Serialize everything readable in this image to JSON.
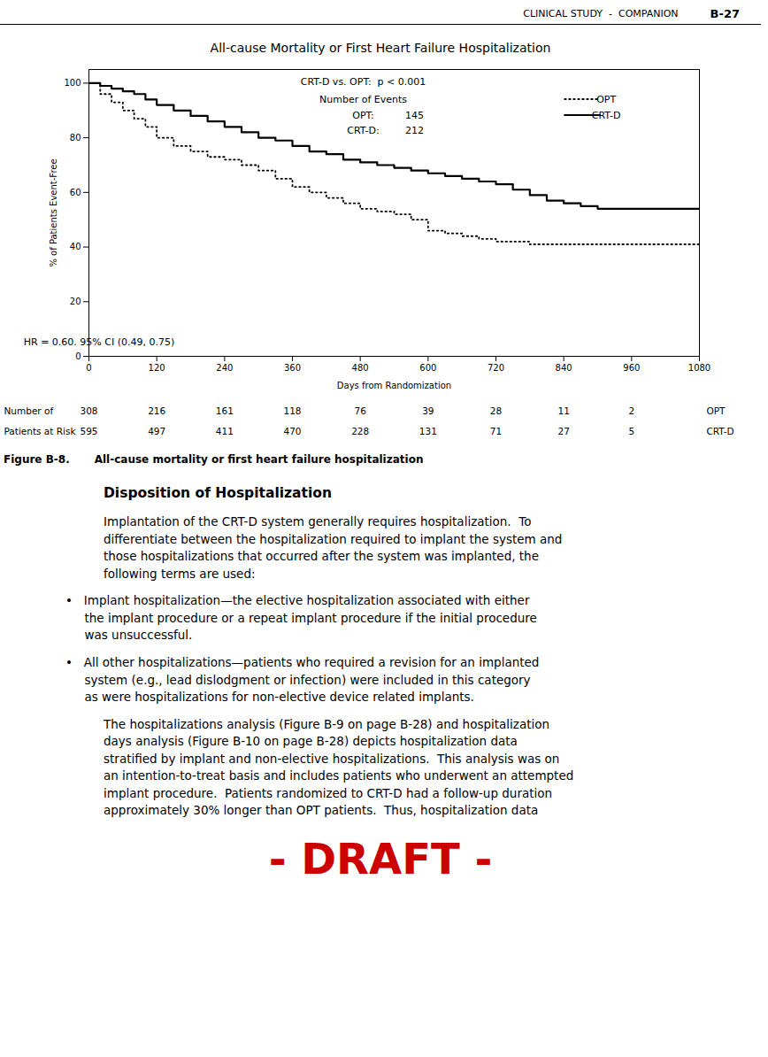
{
  "header": "CLINICAL STUDY  -  COMPANION",
  "page_number": "B-27",
  "chart_data": {
    "type": "step",
    "title": "All-cause Mortality or First Heart Failure Hospitalization",
    "subtitle": "CRT-D vs. OPT:  p < 0.001",
    "hr_text": "HR = 0.60. 95% CI (0.49, 0.75)",
    "x_label": "Days from Randomization",
    "y_label": "% of Patients Event-Free",
    "xlim": [
      0,
      1080
    ],
    "ylim": [
      0,
      105
    ],
    "xticks": [
      0,
      120,
      240,
      360,
      480,
      600,
      720,
      840,
      960,
      1080
    ],
    "yticks": [
      0,
      20,
      40,
      60,
      80,
      100
    ],
    "grid": false,
    "legend": "upper right",
    "series": [
      {
        "name": "OPT",
        "color": "#000000",
        "line_style": "dotted",
        "x": [
          0,
          20,
          40,
          60,
          80,
          100,
          120,
          150,
          180,
          210,
          240,
          270,
          300,
          330,
          360,
          390,
          420,
          450,
          480,
          510,
          540,
          570,
          600,
          630,
          660,
          690,
          720,
          750,
          780,
          810,
          840,
          870,
          900,
          960,
          1020,
          1080
        ],
        "values": [
          100,
          96,
          93,
          90,
          87,
          84,
          80,
          77,
          75,
          73,
          72,
          70,
          68,
          65,
          62,
          60,
          58,
          56,
          54,
          53,
          52,
          50,
          46,
          45,
          44,
          43,
          42,
          42,
          41,
          41,
          41,
          41,
          41,
          41,
          41,
          41
        ]
      },
      {
        "name": "CRT-D",
        "color": "#000000",
        "line_style": "solid",
        "x": [
          0,
          20,
          40,
          60,
          80,
          100,
          120,
          150,
          180,
          210,
          240,
          270,
          300,
          330,
          360,
          390,
          420,
          450,
          480,
          510,
          540,
          570,
          600,
          630,
          660,
          690,
          720,
          750,
          780,
          810,
          840,
          870,
          900,
          950,
          1000,
          1050,
          1080
        ],
        "values": [
          100,
          99,
          98,
          97,
          96,
          94,
          92,
          90,
          88,
          86,
          84,
          82,
          80,
          79,
          77,
          75,
          74,
          72,
          71,
          70,
          69,
          68,
          67,
          66,
          65,
          64,
          63,
          61,
          59,
          57,
          56,
          55,
          54,
          54,
          54,
          54,
          54
        ]
      }
    ],
    "events": {
      "label": "Number of Events",
      "rows": [
        {
          "label": "OPT:",
          "value": 145
        },
        {
          "label": "CRT-D:",
          "value": 212
        }
      ]
    },
    "risk_table": {
      "label_lines": [
        "Number of",
        "Patients at Risk"
      ],
      "x": [
        0,
        120,
        240,
        360,
        480,
        600,
        720,
        840,
        960
      ],
      "rows": [
        {
          "name": "OPT",
          "values": [
            308,
            216,
            161,
            118,
            76,
            39,
            28,
            11,
            2
          ]
        },
        {
          "name": "CRT-D",
          "values": [
            595,
            497,
            411,
            470,
            228,
            131,
            71,
            27,
            5
          ]
        }
      ]
    }
  },
  "caption": {
    "label": "Figure B-8.",
    "text": "All-cause mortality or first heart failure hospitalization"
  },
  "body": {
    "title": "Disposition of Hospitalization",
    "paragraphs": [
      "Implantation of the CRT-D system generally requires hospitalization.  To\ndifferentiate between the hospitalization required to implant the system and\nthose hospitalizations that occurred after the system was implanted, the\nfollowing terms are used:",
      "•   Implant hospitalization—the elective hospitalization associated with either\n     the implant procedure or a repeat implant procedure if the initial procedure\n     was unsuccessful.",
      "•   All other hospitalizations—patients who required a revision for an implanted\n     system (e.g., lead dislodgment or infection) were included in this category\n     as were hospitalizations for non-elective device related implants.",
      "The hospitalizations analysis (Figure B-9 on page B-28) and hospitalization\ndays analysis (Figure B-10 on page B-28) depicts hospitalization data\nstratified by implant and non-elective hospitalizations.  This analysis was on\nan intention-to-treat basis and includes patients who underwent an attempted\nimplant procedure.  Patients randomized to CRT-D had a follow-up duration\napproximately 30% longer than OPT patients.  Thus, hospitalization data"
    ]
  },
  "draft": {
    "text": "- DRAFT -",
    "color": "#cc0000"
  }
}
